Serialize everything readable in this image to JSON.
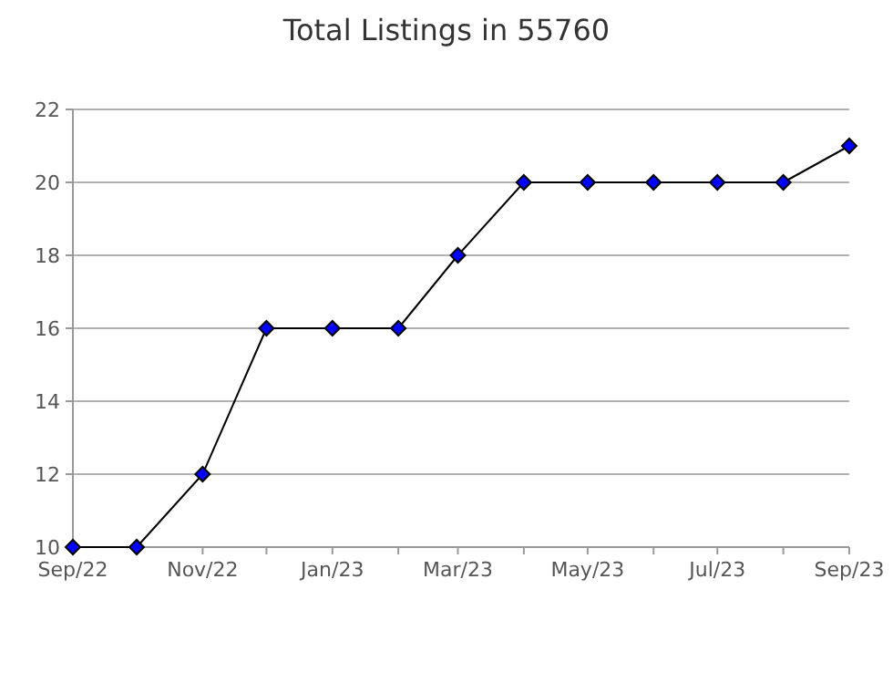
{
  "chart_data": {
    "type": "line",
    "title": "Total Listings in 55760",
    "x": [
      "2022-09",
      "2022-10",
      "2022-11",
      "2022-12",
      "2023-01",
      "2023-02",
      "2023-03",
      "2023-04",
      "2023-05",
      "2023-06",
      "2023-07",
      "2023-08",
      "2023-09"
    ],
    "series": [
      {
        "color": "#000000",
        "values": [
          10,
          10,
          12,
          16,
          16,
          16,
          18,
          20,
          20,
          20,
          20,
          20,
          21
        ]
      }
    ],
    "marker": "diamond",
    "grid": "y",
    "xlim": [
      "2022-09",
      "2023-09"
    ],
    "xticks": [
      {
        "value": "2022-09",
        "label": "Sep/22"
      },
      {
        "value": "2022-10",
        "label": null
      },
      {
        "value": "2022-11",
        "label": "Nov/22"
      },
      {
        "value": "2022-12",
        "label": null
      },
      {
        "value": "2023-01",
        "label": "Jan/23"
      },
      {
        "value": "2023-02",
        "label": null
      },
      {
        "value": "2023-03",
        "label": "Mar/23"
      },
      {
        "value": "2023-04",
        "label": null
      },
      {
        "value": "2023-05",
        "label": "May/23"
      },
      {
        "value": "2023-06",
        "label": null
      },
      {
        "value": "2023-07",
        "label": "Jul/23"
      },
      {
        "value": "2023-08",
        "label": null
      },
      {
        "value": "2023-09",
        "label": "Sep/23"
      }
    ],
    "ylim": [
      10,
      22
    ],
    "yticks": [
      10,
      12,
      14,
      16,
      18,
      20,
      22
    ]
  }
}
